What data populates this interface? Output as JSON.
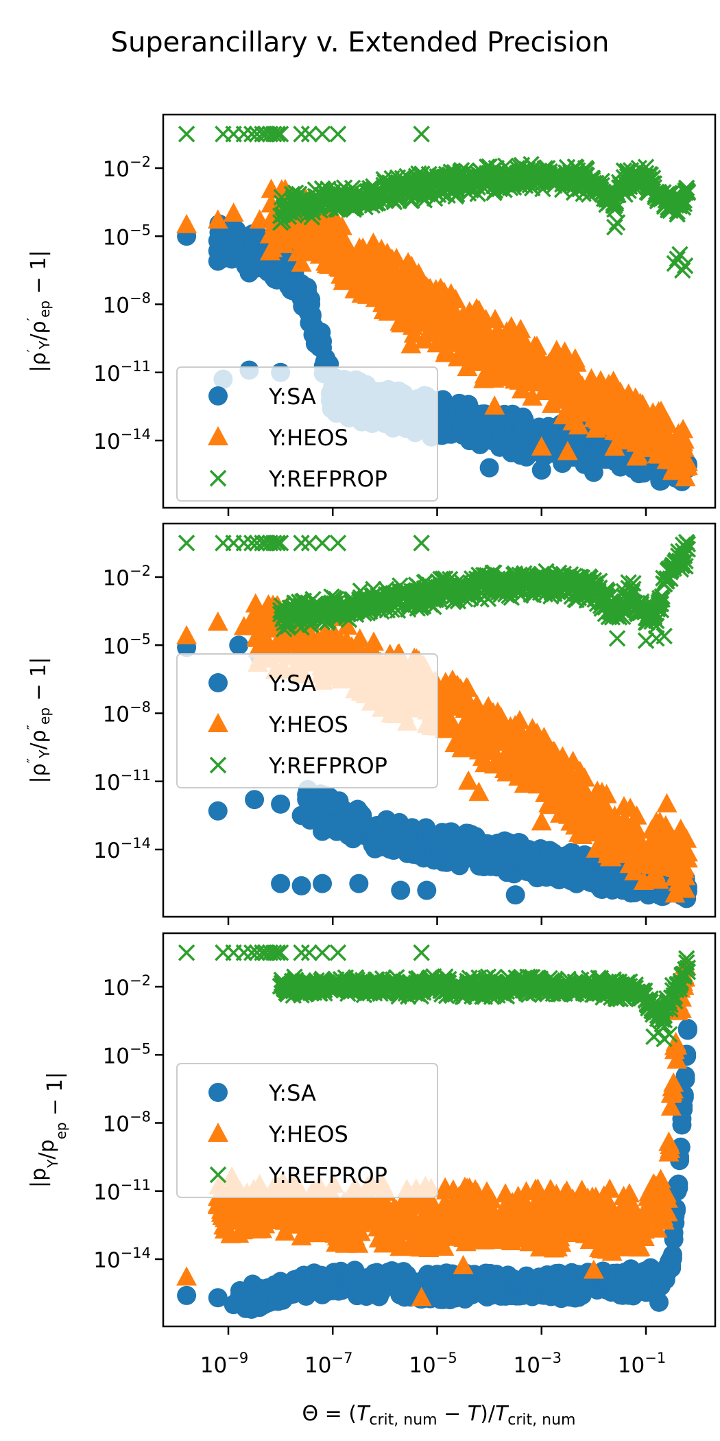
{
  "chart_data": {
    "type": "scatter",
    "title": "Superancillary v. Extended Precision",
    "xlabel": "Θ = (T_crit,num − T)/T_crit,num",
    "xlabel_parts": {
      "lhs": "Θ = (",
      "T1": "T",
      "sub1": "crit, num",
      "mid": " − ",
      "T2": "T",
      "close": ")/",
      "T3": "T",
      "sub2": "crit, num"
    },
    "xscale": "log",
    "xlim_log10": [
      -10.3,
      -0.1
    ],
    "xticks": [
      {
        "label": "10",
        "exp": "−9",
        "log": -9
      },
      {
        "label": "10",
        "exp": "−7",
        "log": -7
      },
      {
        "label": "10",
        "exp": "−5",
        "log": -5
      },
      {
        "label": "10",
        "exp": "−3",
        "log": -3
      },
      {
        "label": "10",
        "exp": "−1",
        "log": -1
      }
    ],
    "yscale": "log",
    "ylim_log10": [
      -16.5,
      0.5
    ],
    "yticks": [
      {
        "label": "10",
        "exp": "−2",
        "log": -2
      },
      {
        "label": "10",
        "exp": "−5",
        "log": -5
      },
      {
        "label": "10",
        "exp": "−8",
        "log": -8
      },
      {
        "label": "10",
        "exp": "−11",
        "log": -11
      },
      {
        "label": "10",
        "exp": "−14",
        "log": -14
      }
    ],
    "legend": {
      "placement": "center-left",
      "entries": [
        {
          "label": "Y:SA",
          "marker": "circle",
          "color": "#1f77b4"
        },
        {
          "label": "Y:HEOS",
          "marker": "triangle",
          "color": "#ff7f0e"
        },
        {
          "label": "Y:REFPROP",
          "marker": "x",
          "color": "#2ca02c"
        }
      ]
    },
    "colors": {
      "SA": "#1f77b4",
      "HEOS": "#ff7f0e",
      "REFPROP": "#2ca02c"
    },
    "refprop_outliers_log10x": [
      -9.8,
      -9.1,
      -8.9,
      -8.7,
      -8.55,
      -8.45,
      -8.35,
      -8.28,
      -8.2,
      -8.13,
      -8.06,
      -8.0,
      -7.6,
      -7.45,
      -7.2,
      -6.9,
      -5.3
    ],
    "refprop_outlier_log10y": -0.5,
    "panels": [
      {
        "ylabel": "|ρ′_Y/ρ′_ep − 1|",
        "ylabel_parts": {
          "pre": "|ρ",
          "sup": "′",
          "sub": "Y",
          "mid": "/ρ",
          "sup2": "′",
          "sub2": "ep",
          "post": " − 1|"
        },
        "legend_anchor": "lower-left",
        "series": [
          {
            "name": "Y:REFPROP",
            "marker": "x",
            "band": [
              [
                -8.0,
                -3.8
              ],
              [
                -6,
                -3.0
              ],
              [
                -4,
                -2.5
              ],
              [
                -3,
                -2.4
              ],
              [
                -2,
                -2.6
              ],
              [
                -1.6,
                -3.5
              ],
              [
                -1.4,
                -2.6
              ],
              [
                -1.0,
                -2.5
              ],
              [
                -0.7,
                -3.5
              ],
              [
                -0.4,
                -3.8
              ],
              [
                -0.2,
                -3.0
              ]
            ],
            "band_width_dec": 1.2,
            "points": [
              [
                -1.6,
                -4.6
              ],
              [
                -1.55,
                -4.4
              ],
              [
                -0.45,
                -6.2
              ],
              [
                -0.4,
                -6.0
              ],
              [
                -0.35,
                -5.8
              ],
              [
                -0.3,
                -6.5
              ],
              [
                -0.25,
                -6.3
              ]
            ]
          },
          {
            "name": "Y:HEOS",
            "marker": "triangle",
            "band": [
              [
                -8.2,
                -4.2
              ],
              [
                -7,
                -5.2
              ],
              [
                -6,
                -7.0
              ],
              [
                -5,
                -8.5
              ],
              [
                -4,
                -10.0
              ],
              [
                -3,
                -11.0
              ],
              [
                -2,
                -12.3
              ],
              [
                -1,
                -13.8
              ],
              [
                -0.2,
                -14.8
              ]
            ],
            "band_width_dec": 3.0,
            "points": [
              [
                -9.8,
                -4.5
              ],
              [
                -9.2,
                -4.3
              ],
              [
                -8.9,
                -4.0
              ],
              [
                -8.4,
                -4.3
              ],
              [
                -7.2,
                -5.0
              ],
              [
                -6.6,
                -6.8
              ],
              [
                -6.0,
                -8.2
              ],
              [
                -5.5,
                -9.8
              ],
              [
                -4.9,
                -8.3
              ],
              [
                -4.5,
                -9.0
              ],
              [
                -3.9,
                -12.5
              ],
              [
                -3.0,
                -14.3
              ],
              [
                -2.5,
                -14.5
              ]
            ]
          },
          {
            "name": "Y:SA",
            "marker": "circle",
            "band": [
              [
                -9.2,
                -5.2
              ],
              [
                -8.5,
                -5.8
              ],
              [
                -7.8,
                -6.5
              ],
              [
                -7.5,
                -7.5
              ],
              [
                -7,
                -12.0
              ],
              [
                -5,
                -13.0
              ],
              [
                -3,
                -14.0
              ],
              [
                -1,
                -14.8
              ],
              [
                -0.2,
                -15.2
              ]
            ],
            "band_width_dec": 1.8,
            "points": [
              [
                -9.8,
                -5.0
              ],
              [
                -9.2,
                -5.2
              ],
              [
                -8.9,
                -5.5
              ],
              [
                -8.4,
                -5.9
              ],
              [
                -7.6,
                -7.1
              ],
              [
                -9.1,
                -11.3
              ],
              [
                -8.6,
                -10.9
              ],
              [
                -8.0,
                -11.0
              ],
              [
                -7.0,
                -11.6
              ],
              [
                -6.5,
                -12.0
              ],
              [
                -4.0,
                -15.2
              ],
              [
                -3.0,
                -15.3
              ],
              [
                -2.0,
                -15.4
              ],
              [
                -0.3,
                -15.3
              ]
            ]
          }
        ]
      },
      {
        "ylabel": "|ρ″_Y/ρ″_ep − 1|",
        "ylabel_parts": {
          "pre": "|ρ",
          "sup": "″",
          "sub": "Y",
          "mid": "/ρ",
          "sup2": "″",
          "sub2": "ep",
          "post": " − 1|"
        },
        "legend_anchor": "center-left",
        "series": [
          {
            "name": "Y:REFPROP",
            "marker": "x",
            "band": [
              [
                -8.0,
                -3.8
              ],
              [
                -6,
                -3.0
              ],
              [
                -4,
                -2.4
              ],
              [
                -3,
                -2.3
              ],
              [
                -2,
                -2.5
              ],
              [
                -1.55,
                -3.6
              ],
              [
                -1.3,
                -2.6
              ],
              [
                -1.0,
                -3.6
              ],
              [
                -0.8,
                -3.7
              ],
              [
                -0.55,
                -1.5
              ],
              [
                -0.2,
                -1.0
              ]
            ],
            "band_width_dec": 1.2,
            "points": [
              [
                -1.55,
                -4.7
              ],
              [
                -1.0,
                -4.8
              ],
              [
                -0.8,
                -4.7
              ],
              [
                -0.65,
                -4.6
              ]
            ]
          },
          {
            "name": "Y:HEOS",
            "marker": "triangle",
            "band": [
              [
                -8.5,
                -4.5
              ],
              [
                -7,
                -5.2
              ],
              [
                -6,
                -6.5
              ],
              [
                -5,
                -7.5
              ],
              [
                -4,
                -9.0
              ],
              [
                -3,
                -10.3
              ],
              [
                -2,
                -12.5
              ],
              [
                -1,
                -14.0
              ],
              [
                -0.2,
                -14.7
              ]
            ],
            "band_width_dec": 3.0,
            "points": [
              [
                -9.8,
                -4.6
              ],
              [
                -9.2,
                -4.0
              ],
              [
                -8.7,
                -4.2
              ],
              [
                -8.3,
                -4.3
              ],
              [
                -4.4,
                -11.0
              ],
              [
                -4.2,
                -11.5
              ],
              [
                -3.0,
                -12.8
              ],
              [
                -1.3,
                -12.2
              ],
              [
                -0.6,
                -12.0
              ]
            ]
          },
          {
            "name": "Y:SA",
            "marker": "circle",
            "band": [
              [
                -7.5,
                -12.0
              ],
              [
                -6,
                -13.4
              ],
              [
                -4,
                -14.2
              ],
              [
                -2,
                -15.0
              ],
              [
                -0.2,
                -15.5
              ]
            ],
            "band_width_dec": 1.5,
            "points": [
              [
                -9.8,
                -5.1
              ],
              [
                -8.8,
                -5.0
              ],
              [
                -8.4,
                -5.5
              ],
              [
                -9.2,
                -12.3
              ],
              [
                -8.5,
                -11.8
              ],
              [
                -8.0,
                -12.0
              ],
              [
                -7.6,
                -12.5
              ],
              [
                -7.2,
                -13.2
              ],
              [
                -7.0,
                -12.0
              ],
              [
                -8.0,
                -15.5
              ],
              [
                -7.6,
                -15.6
              ],
              [
                -7.2,
                -15.5
              ],
              [
                -6.5,
                -15.5
              ],
              [
                -5.7,
                -15.8
              ],
              [
                -5.2,
                -15.8
              ],
              [
                -3.5,
                -16.0
              ]
            ]
          }
        ]
      },
      {
        "ylabel": "|p_Y/p_ep − 1|",
        "ylabel_parts": {
          "pre": "|p",
          "sup": "",
          "sub": "Y",
          "mid": "/p",
          "sup2": "",
          "sub2": "ep",
          "post": " − 1|"
        },
        "legend_anchor": "center-left",
        "series": [
          {
            "name": "Y:REFPROP",
            "marker": "x",
            "band": [
              [
                -8.0,
                -2.0
              ],
              [
                -4,
                -2.0
              ],
              [
                -2,
                -2.0
              ],
              [
                -1.2,
                -2.2
              ],
              [
                -0.7,
                -3.3
              ],
              [
                -0.4,
                -2.0
              ],
              [
                -0.2,
                -1.0
              ]
            ],
            "band_width_dec": 0.9,
            "points": [
              [
                -0.85,
                -4.2
              ],
              [
                -0.75,
                -4.0
              ],
              [
                -0.65,
                -4.3
              ],
              [
                -0.55,
                -4.1
              ]
            ]
          },
          {
            "name": "Y:HEOS",
            "marker": "triangle",
            "band": [
              [
                -9.2,
                -11.7
              ],
              [
                -7,
                -12.0
              ],
              [
                -5,
                -12.2
              ],
              [
                -3,
                -12.2
              ],
              [
                -1,
                -12.4
              ],
              [
                -0.6,
                -11.5
              ],
              [
                -0.45,
                -5.0
              ],
              [
                -0.25,
                -0.5
              ]
            ],
            "band_width_dec": 2.8,
            "points": [
              [
                -9.8,
                -14.8
              ],
              [
                -9.2,
                -11.3
              ],
              [
                -8.9,
                -11.5
              ],
              [
                -8.3,
                -12.5
              ],
              [
                -5.3,
                -15.7
              ],
              [
                -4.5,
                -14.3
              ],
              [
                -2.0,
                -14.5
              ]
            ]
          },
          {
            "name": "Y:SA",
            "marker": "circle",
            "band": [
              [
                -8.8,
                -15.8
              ],
              [
                -7,
                -15.0
              ],
              [
                -5,
                -15.2
              ],
              [
                -3,
                -15.2
              ],
              [
                -1,
                -15.0
              ],
              [
                -0.5,
                -14.5
              ],
              [
                -0.3,
                -8.0
              ],
              [
                -0.2,
                -4.0
              ]
            ],
            "band_width_dec": 1.2,
            "points": [
              [
                -9.8,
                -15.6
              ],
              [
                -9.2,
                -15.7
              ],
              [
                -8.9,
                -16.0
              ],
              [
                -8.6,
                -15.9
              ],
              [
                -0.75,
                -15.9
              ]
            ]
          }
        ]
      }
    ]
  }
}
